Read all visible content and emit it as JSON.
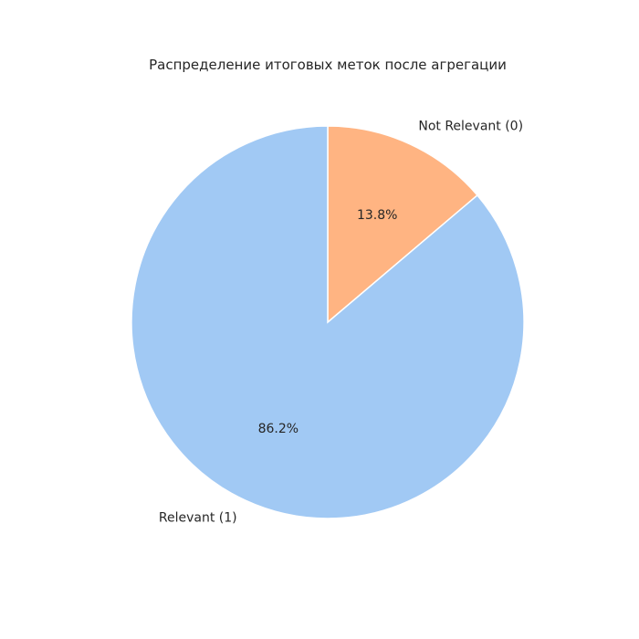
{
  "chart_data": {
    "type": "pie",
    "title": "Распределение итоговых меток после агрегации",
    "slices": [
      {
        "label": "Not Relevant (0)",
        "value": 13.8,
        "pct_label": "13.8%",
        "color": "#FFB482"
      },
      {
        "label": "Relevant (1)",
        "value": 86.2,
        "pct_label": "86.2%",
        "color": "#A1C9F4"
      }
    ],
    "start_angle": 90,
    "direction": "clockwise"
  }
}
